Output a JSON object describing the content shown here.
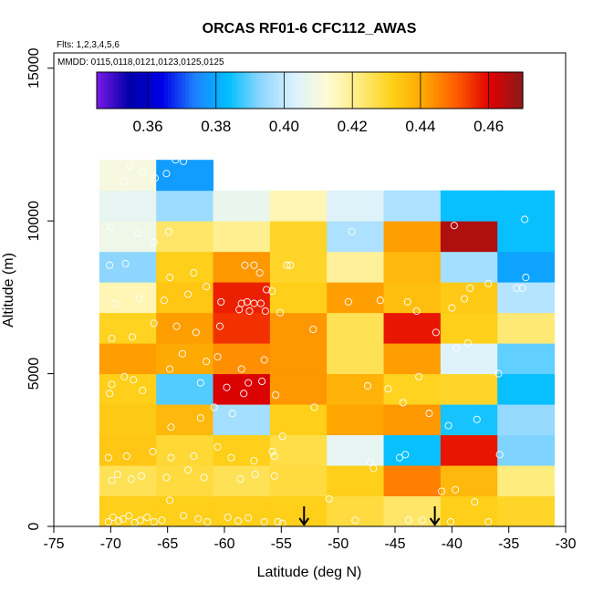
{
  "chart_data": {
    "type": "heatmap",
    "title": "ORCAS RF01-6 CFC112_AWAS",
    "subtitle_flights": "Flts: 1,2,3,4,5,6",
    "subtitle_dates": "MMDD: 0115,0118,0121,0123,0125,0125",
    "xlabel": "Latitude (deg N)",
    "ylabel": "Altitude (m)",
    "xlim": [
      -75,
      -30
    ],
    "ylim": [
      0,
      15500
    ],
    "xticks": [
      -75,
      -70,
      -65,
      -60,
      -55,
      -50,
      -45,
      -40,
      -35,
      -30
    ],
    "xtick_labels": [
      "-75",
      "-70",
      "-65",
      "-60",
      "-55",
      "-50",
      "-45",
      "-40",
      "-35",
      "-30"
    ],
    "yticks": [
      0,
      5000,
      10000,
      15000
    ],
    "ytick_labels": [
      "0",
      "5000",
      "10000",
      "15000"
    ],
    "lat_bins": [
      -71,
      -66,
      -61,
      -56,
      -51,
      -46,
      -41,
      -36,
      -31
    ],
    "alt_bins": [
      0,
      1000,
      2000,
      3000,
      4000,
      5000,
      6000,
      7000,
      8000,
      9000,
      10000,
      11000,
      12000
    ],
    "cells": [
      [
        0.432,
        0.432,
        0.432,
        0.432,
        0.428,
        0.424,
        0.432,
        0.43
      ],
      [
        0.426,
        0.428,
        0.426,
        0.428,
        0.432,
        0.446,
        0.437,
        0.422
      ],
      [
        0.434,
        0.429,
        0.432,
        0.427,
        0.406,
        0.384,
        0.458,
        0.392
      ],
      [
        0.433,
        0.437,
        0.396,
        0.432,
        0.441,
        0.443,
        0.385,
        0.394
      ],
      [
        0.432,
        0.389,
        0.461,
        0.443,
        0.438,
        0.431,
        0.43,
        0.384
      ],
      [
        0.442,
        0.44,
        0.444,
        0.443,
        0.426,
        0.442,
        0.404,
        0.39
      ],
      [
        0.431,
        0.442,
        0.455,
        0.443,
        0.426,
        0.458,
        0.432,
        0.423
      ],
      [
        0.416,
        0.434,
        0.457,
        0.432,
        0.442,
        0.436,
        0.433,
        0.398
      ],
      [
        0.393,
        0.432,
        0.443,
        0.43,
        0.419,
        0.437,
        0.396,
        0.379
      ],
      [
        0.408,
        0.424,
        0.42,
        0.43,
        0.397,
        0.442,
        0.466,
        0.384
      ],
      [
        0.406,
        0.395,
        0.407,
        0.416,
        0.404,
        0.397,
        0.384,
        0.384
      ],
      [
        0.41,
        0.378,
        null,
        null,
        null,
        null,
        null,
        null
      ]
    ],
    "colorbar": {
      "range": [
        0.345,
        0.47
      ],
      "ticks": [
        0.36,
        0.38,
        0.4,
        0.42,
        0.44,
        0.46
      ],
      "tick_labels": [
        "0.36",
        "0.38",
        "0.40",
        "0.42",
        "0.44",
        "0.46"
      ],
      "colors": [
        "#7a1ae6",
        "#0000a8",
        "#0000e6",
        "#1e82ff",
        "#00bfff",
        "#8fd6ff",
        "#d9f2ff",
        "#fffbd6",
        "#ffec80",
        "#ffd11a",
        "#ffa500",
        "#ff5a00",
        "#e00000",
        "#8b1a1a"
      ]
    },
    "arrows_latitude": [
      -53,
      -41.5
    ],
    "samples": [
      [
        -70.2,
        150
      ],
      [
        -69.8,
        300
      ],
      [
        -69.3,
        180
      ],
      [
        -68.9,
        250
      ],
      [
        -68.4,
        350
      ],
      [
        -67.9,
        120
      ],
      [
        -67.4,
        200
      ],
      [
        -66.8,
        300
      ],
      [
        -66.2,
        150
      ],
      [
        -65.5,
        200
      ],
      [
        -64.8,
        850
      ],
      [
        -63.6,
        350
      ],
      [
        -62.3,
        250
      ],
      [
        -61.5,
        150
      ],
      [
        -59.7,
        300
      ],
      [
        -58.8,
        180
      ],
      [
        -57.9,
        280
      ],
      [
        -56.5,
        150
      ],
      [
        -55.3,
        150
      ],
      [
        -54.9,
        100
      ],
      [
        -50.8,
        900
      ],
      [
        -48.5,
        200
      ],
      [
        -43.8,
        200
      ],
      [
        -42.6,
        200
      ],
      [
        -40.1,
        150
      ],
      [
        -38.0,
        800
      ],
      [
        -36.8,
        150
      ],
      [
        -69.9,
        1500
      ],
      [
        -69.4,
        1700
      ],
      [
        -68.2,
        1550
      ],
      [
        -67.3,
        1650
      ],
      [
        -65.1,
        1600
      ],
      [
        -63.2,
        1850
      ],
      [
        -61.8,
        1600
      ],
      [
        -58.6,
        1550
      ],
      [
        -57.3,
        1700
      ],
      [
        -55.6,
        1650
      ],
      [
        -47.2,
        2100
      ],
      [
        -46.9,
        1900
      ],
      [
        -44.6,
        2250
      ],
      [
        -44.1,
        2350
      ],
      [
        -40.9,
        1150
      ],
      [
        -39.7,
        1200
      ],
      [
        -70.2,
        2250
      ],
      [
        -68.6,
        2300
      ],
      [
        -66.3,
        2450
      ],
      [
        -64.7,
        2250
      ],
      [
        -62.7,
        2300
      ],
      [
        -60.6,
        2600
      ],
      [
        -59.4,
        2250
      ],
      [
        -57.4,
        2150
      ],
      [
        -55.6,
        2300
      ],
      [
        -55.8,
        2450
      ],
      [
        -54.9,
        2950
      ],
      [
        -37.8,
        3500
      ],
      [
        -40.3,
        3300
      ],
      [
        -35.8,
        2350
      ],
      [
        -42.0,
        3700
      ],
      [
        -64.7,
        3250
      ],
      [
        -59.3,
        3700
      ],
      [
        -62.1,
        3550
      ],
      [
        -60.9,
        3900
      ],
      [
        -70.1,
        4350
      ],
      [
        -69.9,
        4650
      ],
      [
        -68.0,
        4800
      ],
      [
        -67.2,
        4450
      ],
      [
        -62.1,
        4700
      ],
      [
        -59.8,
        4550
      ],
      [
        -58.3,
        4350
      ],
      [
        -56.7,
        4750
      ],
      [
        -55.5,
        4300
      ],
      [
        -52.1,
        3900
      ],
      [
        -47.4,
        4600
      ],
      [
        -45.6,
        4500
      ],
      [
        -44.3,
        4050
      ],
      [
        -42.9,
        4900
      ],
      [
        -35.9,
        5000
      ],
      [
        -68.8,
        4900
      ],
      [
        -63.7,
        5650
      ],
      [
        -61.6,
        5400
      ],
      [
        -60.6,
        5550
      ],
      [
        -58.5,
        5150
      ],
      [
        -64.8,
        5150
      ],
      [
        -56.5,
        5450
      ],
      [
        -57.9,
        4700
      ],
      [
        -69.9,
        6150
      ],
      [
        -68.1,
        6200
      ],
      [
        -66.2,
        6650
      ],
      [
        -64.2,
        6550
      ],
      [
        -62.5,
        6350
      ],
      [
        -60.4,
        6550
      ],
      [
        -58.7,
        7100
      ],
      [
        -57.8,
        7050
      ],
      [
        -56.4,
        7050
      ],
      [
        -57.4,
        7300
      ],
      [
        -56.8,
        7300
      ],
      [
        -55.1,
        7000
      ],
      [
        -52.2,
        6450
      ],
      [
        -46.3,
        7400
      ],
      [
        -41.4,
        6350
      ],
      [
        -38.6,
        6000
      ],
      [
        -39.6,
        5850
      ],
      [
        -69.6,
        7300
      ],
      [
        -67.5,
        7450
      ],
      [
        -65.3,
        7400
      ],
      [
        -63.2,
        7600
      ],
      [
        -61.6,
        7850
      ],
      [
        -60.3,
        7350
      ],
      [
        -58.5,
        7300
      ],
      [
        -58.0,
        7350
      ],
      [
        -56.3,
        7750
      ],
      [
        -55.8,
        7700
      ],
      [
        -49.1,
        7350
      ],
      [
        -43.9,
        7350
      ],
      [
        -43.1,
        7050
      ],
      [
        -40.0,
        7150
      ],
      [
        -38.9,
        7450
      ],
      [
        -38.4,
        7800
      ],
      [
        -34.3,
        7800
      ],
      [
        -33.8,
        7800
      ],
      [
        -36.8,
        7950
      ],
      [
        -70.1,
        8550
      ],
      [
        -68.7,
        8600
      ],
      [
        -64.8,
        8150
      ],
      [
        -62.7,
        8300
      ],
      [
        -58.2,
        8550
      ],
      [
        -57.4,
        8550
      ],
      [
        -56.9,
        8300
      ],
      [
        -54.5,
        8550
      ],
      [
        -54.2,
        8550
      ],
      [
        -33.5,
        8150
      ],
      [
        -70.0,
        9800
      ],
      [
        -67.6,
        9600
      ],
      [
        -66.2,
        9300
      ],
      [
        -64.9,
        9650
      ],
      [
        -48.8,
        9650
      ],
      [
        -39.8,
        9850
      ],
      [
        -33.6,
        10050
      ],
      [
        -68.8,
        11300
      ],
      [
        -68.3,
        11800
      ],
      [
        -67.2,
        11600
      ],
      [
        -66.1,
        11400
      ],
      [
        -65.1,
        11550
      ],
      [
        -64.3,
        12000
      ],
      [
        -63.6,
        11950
      ]
    ]
  }
}
